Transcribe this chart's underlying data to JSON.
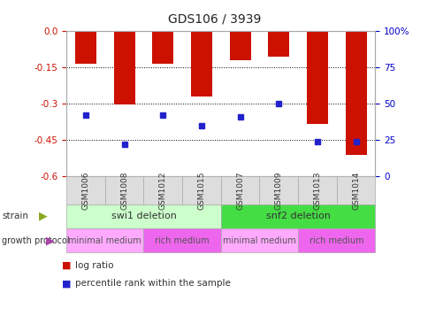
{
  "title": "GDS106 / 3939",
  "samples": [
    "GSM1006",
    "GSM1008",
    "GSM1012",
    "GSM1015",
    "GSM1007",
    "GSM1009",
    "GSM1013",
    "GSM1014"
  ],
  "log_ratios": [
    -0.135,
    -0.305,
    -0.135,
    -0.27,
    -0.12,
    -0.105,
    -0.385,
    -0.51
  ],
  "percentile_ranks": [
    42,
    22,
    42,
    35,
    41,
    50,
    24,
    24
  ],
  "ylim_left": [
    -0.6,
    0.0
  ],
  "ylim_right": [
    0,
    100
  ],
  "yticks_left": [
    0.0,
    -0.15,
    -0.3,
    -0.45,
    -0.6
  ],
  "yticks_right": [
    0,
    25,
    50,
    75,
    100
  ],
  "bar_color": "#cc1100",
  "dot_color": "#2222cc",
  "grid_color": "#000000",
  "strain_labels": [
    {
      "label": "swi1 deletion",
      "start": 0,
      "end": 4,
      "color": "#ccffcc"
    },
    {
      "label": "snf2 deletion",
      "start": 4,
      "end": 8,
      "color": "#44dd44"
    }
  ],
  "protocol_labels": [
    {
      "label": "minimal medium",
      "start": 0,
      "end": 2,
      "color": "#ffaaff"
    },
    {
      "label": "rich medium",
      "start": 2,
      "end": 4,
      "color": "#ee66ee"
    },
    {
      "label": "minimal medium",
      "start": 4,
      "end": 6,
      "color": "#ffaaff"
    },
    {
      "label": "rich medium",
      "start": 6,
      "end": 8,
      "color": "#ee66ee"
    }
  ],
  "legend_items": [
    {
      "label": "log ratio",
      "color": "#cc1100"
    },
    {
      "label": "percentile rank within the sample",
      "color": "#2222cc"
    }
  ],
  "ax_bg": "#ffffff",
  "spine_color": "#aaaaaa",
  "tick_label_color_left": "#cc1100",
  "tick_label_color_right": "#0000cc",
  "sample_box_color": "#dddddd",
  "strain_arrow_color": "#88aa22",
  "protocol_arrow_color": "#aa44aa"
}
